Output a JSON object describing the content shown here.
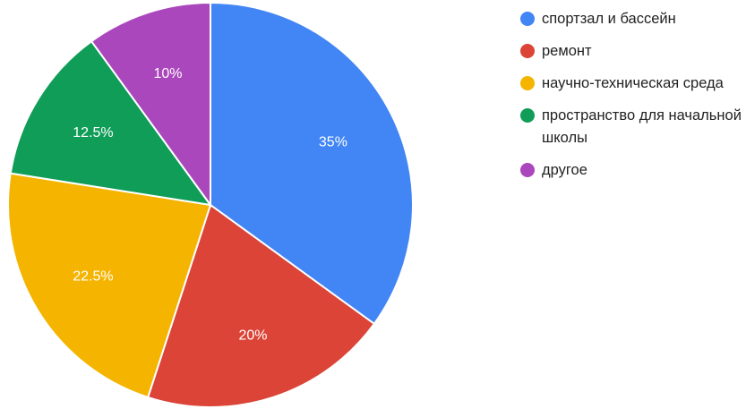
{
  "chart_data": {
    "type": "pie",
    "title": "",
    "legend_position": "right",
    "slices": [
      {
        "label": "спортзал и бассейн",
        "value": 35,
        "value_label": "35%",
        "color": "#4285f4"
      },
      {
        "label": "ремонт",
        "value": 20,
        "value_label": "20%",
        "color": "#db4437"
      },
      {
        "label": "научно-техническая среда",
        "value": 22.5,
        "value_label": "22.5%",
        "color": "#f4b400"
      },
      {
        "label": "пространство для начальной школы",
        "value": 12.5,
        "value_label": "12.5%",
        "color": "#0f9d58"
      },
      {
        "label": "другое",
        "value": 10,
        "value_label": "10%",
        "color": "#ab47bc"
      }
    ]
  }
}
